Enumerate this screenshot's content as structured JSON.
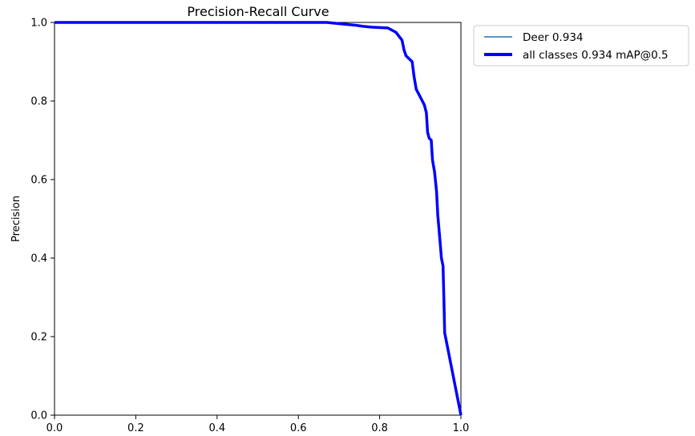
{
  "chart_data": {
    "type": "line",
    "title": "Precision-Recall Curve",
    "xlabel": "",
    "ylabel": "Precision",
    "xlim": [
      0,
      1
    ],
    "ylim": [
      0,
      1
    ],
    "xticks": [
      "0.0",
      "0.2",
      "0.4",
      "0.6",
      "0.8",
      "1.0"
    ],
    "yticks": [
      "0.0",
      "0.2",
      "0.4",
      "0.6",
      "0.8",
      "1.0"
    ],
    "grid": false,
    "legend_position": "outside-top-right",
    "series": [
      {
        "name": "Deer 0.934",
        "color": "#1f77b4",
        "style": "thin",
        "points": [
          [
            0.0,
            1.0
          ],
          [
            0.2,
            1.0
          ],
          [
            0.4,
            1.0
          ],
          [
            0.6,
            1.0
          ],
          [
            0.67,
            1.0
          ],
          [
            0.7,
            0.997
          ],
          [
            0.72,
            0.995
          ],
          [
            0.74,
            0.993
          ],
          [
            0.76,
            0.99
          ],
          [
            0.78,
            0.988
          ],
          [
            0.8,
            0.987
          ],
          [
            0.82,
            0.986
          ],
          [
            0.84,
            0.975
          ],
          [
            0.855,
            0.955
          ],
          [
            0.86,
            0.93
          ],
          [
            0.865,
            0.915
          ],
          [
            0.875,
            0.905
          ],
          [
            0.88,
            0.9
          ],
          [
            0.885,
            0.86
          ],
          [
            0.89,
            0.83
          ],
          [
            0.895,
            0.82
          ],
          [
            0.9,
            0.81
          ],
          [
            0.905,
            0.8
          ],
          [
            0.91,
            0.79
          ],
          [
            0.915,
            0.77
          ],
          [
            0.918,
            0.72
          ],
          [
            0.922,
            0.705
          ],
          [
            0.927,
            0.7
          ],
          [
            0.93,
            0.65
          ],
          [
            0.935,
            0.62
          ],
          [
            0.94,
            0.57
          ],
          [
            0.943,
            0.51
          ],
          [
            0.948,
            0.45
          ],
          [
            0.952,
            0.4
          ],
          [
            0.956,
            0.38
          ],
          [
            0.958,
            0.3
          ],
          [
            0.96,
            0.21
          ],
          [
            1.0,
            0.0
          ]
        ]
      },
      {
        "name": "all classes 0.934 mAP@0.5",
        "color": "#0000ff",
        "style": "thick",
        "points": [
          [
            0.0,
            1.0
          ],
          [
            0.2,
            1.0
          ],
          [
            0.4,
            1.0
          ],
          [
            0.6,
            1.0
          ],
          [
            0.67,
            1.0
          ],
          [
            0.7,
            0.997
          ],
          [
            0.72,
            0.995
          ],
          [
            0.74,
            0.993
          ],
          [
            0.76,
            0.99
          ],
          [
            0.78,
            0.988
          ],
          [
            0.8,
            0.987
          ],
          [
            0.82,
            0.986
          ],
          [
            0.84,
            0.975
          ],
          [
            0.855,
            0.955
          ],
          [
            0.86,
            0.93
          ],
          [
            0.865,
            0.915
          ],
          [
            0.875,
            0.905
          ],
          [
            0.88,
            0.9
          ],
          [
            0.885,
            0.86
          ],
          [
            0.89,
            0.83
          ],
          [
            0.895,
            0.82
          ],
          [
            0.9,
            0.81
          ],
          [
            0.905,
            0.8
          ],
          [
            0.91,
            0.79
          ],
          [
            0.915,
            0.77
          ],
          [
            0.918,
            0.72
          ],
          [
            0.922,
            0.705
          ],
          [
            0.927,
            0.7
          ],
          [
            0.93,
            0.65
          ],
          [
            0.935,
            0.62
          ],
          [
            0.94,
            0.57
          ],
          [
            0.943,
            0.51
          ],
          [
            0.948,
            0.45
          ],
          [
            0.952,
            0.4
          ],
          [
            0.956,
            0.38
          ],
          [
            0.958,
            0.3
          ],
          [
            0.96,
            0.21
          ],
          [
            1.0,
            0.0
          ]
        ]
      }
    ]
  }
}
